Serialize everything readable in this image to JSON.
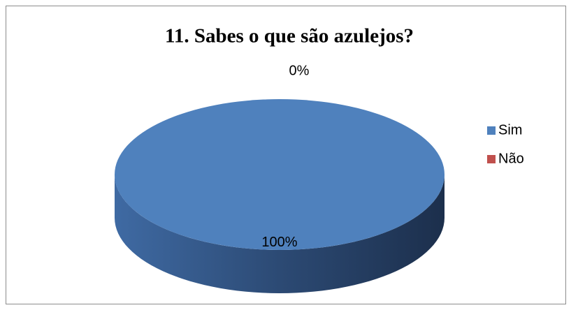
{
  "chart_data": {
    "type": "pie",
    "title": "11. Sabes o que são azulejos?",
    "categories": [
      "Sim",
      "Não"
    ],
    "values": [
      100,
      0
    ],
    "value_labels": [
      "100%",
      "0%"
    ],
    "colors": [
      "#4f81bd",
      "#c0504d"
    ],
    "legend": "right"
  }
}
